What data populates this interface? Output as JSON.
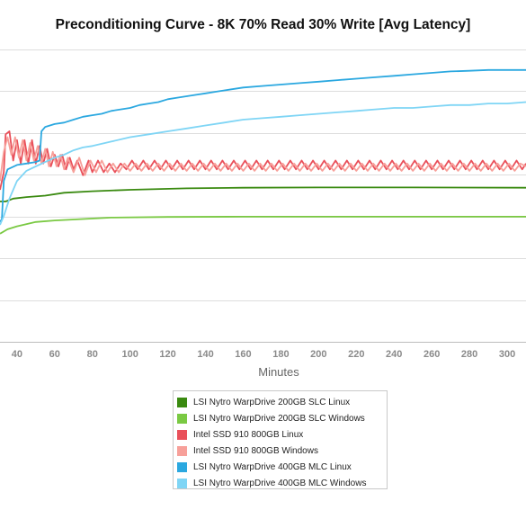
{
  "chart_data": {
    "type": "line",
    "title": "Preconditioning Curve - 8K 70% Read 30% Write [Avg Latency]",
    "xlabel": "Minutes",
    "ylabel": "",
    "xlim": [
      31,
      310
    ],
    "ylim": [
      0,
      1
    ],
    "x_ticks": [
      40,
      60,
      80,
      100,
      120,
      140,
      160,
      180,
      200,
      220,
      240,
      260,
      280,
      300
    ],
    "y_ticks": [
      0.1429,
      0.2857,
      0.4286,
      0.5714,
      0.7143,
      0.8571,
      1.0
    ],
    "grid": true,
    "legend_position": "bottom",
    "y_units_note": "",
    "series": [
      {
        "name": "LSI Nytro WarpDrive 200GB SLC Linux",
        "color": "#3a8a10",
        "points": [
          [
            31,
            0.48
          ],
          [
            34,
            0.48
          ],
          [
            38,
            0.49
          ],
          [
            45,
            0.495
          ],
          [
            55,
            0.5
          ],
          [
            65,
            0.51
          ],
          [
            80,
            0.515
          ],
          [
            100,
            0.52
          ],
          [
            130,
            0.525
          ],
          [
            160,
            0.527
          ],
          [
            200,
            0.528
          ],
          [
            250,
            0.528
          ],
          [
            310,
            0.527
          ]
        ]
      },
      {
        "name": "LSI Nytro WarpDrive 200GB SLC Windows",
        "color": "#7ac943",
        "points": [
          [
            31,
            0.37
          ],
          [
            35,
            0.385
          ],
          [
            40,
            0.395
          ],
          [
            50,
            0.41
          ],
          [
            60,
            0.415
          ],
          [
            75,
            0.42
          ],
          [
            90,
            0.425
          ],
          [
            120,
            0.427
          ],
          [
            160,
            0.428
          ],
          [
            220,
            0.428
          ],
          [
            310,
            0.428
          ]
        ]
      },
      {
        "name": "Intel SSD 910 800GB Linux",
        "color": "#e9505a",
        "points": [
          [
            31,
            0.52
          ],
          [
            33,
            0.58
          ],
          [
            34,
            0.71
          ],
          [
            36,
            0.72
          ],
          [
            38,
            0.62
          ],
          [
            40,
            0.69
          ],
          [
            42,
            0.61
          ],
          [
            44,
            0.69
          ],
          [
            46,
            0.61
          ],
          [
            48,
            0.69
          ],
          [
            50,
            0.61
          ],
          [
            52,
            0.67
          ],
          [
            54,
            0.61
          ],
          [
            56,
            0.66
          ],
          [
            58,
            0.6
          ],
          [
            60,
            0.64
          ],
          [
            62,
            0.6
          ],
          [
            64,
            0.64
          ],
          [
            66,
            0.59
          ],
          [
            68,
            0.63
          ],
          [
            70,
            0.59
          ],
          [
            72,
            0.62
          ],
          [
            75,
            0.57
          ],
          [
            78,
            0.62
          ],
          [
            80,
            0.58
          ],
          [
            83,
            0.62
          ],
          [
            86,
            0.58
          ],
          [
            89,
            0.61
          ],
          [
            92,
            0.58
          ],
          [
            95,
            0.61
          ],
          [
            98,
            0.59
          ],
          [
            101,
            0.62
          ],
          [
            104,
            0.59
          ],
          [
            107,
            0.62
          ],
          [
            110,
            0.59
          ],
          [
            113,
            0.62
          ],
          [
            116,
            0.59
          ],
          [
            119,
            0.62
          ],
          [
            122,
            0.59
          ],
          [
            125,
            0.62
          ],
          [
            128,
            0.59
          ],
          [
            131,
            0.62
          ],
          [
            134,
            0.59
          ],
          [
            137,
            0.62
          ],
          [
            140,
            0.59
          ],
          [
            143,
            0.62
          ],
          [
            146,
            0.59
          ],
          [
            149,
            0.62
          ],
          [
            152,
            0.59
          ],
          [
            155,
            0.62
          ],
          [
            158,
            0.59
          ],
          [
            161,
            0.62
          ],
          [
            164,
            0.59
          ],
          [
            167,
            0.62
          ],
          [
            170,
            0.59
          ],
          [
            173,
            0.62
          ],
          [
            176,
            0.59
          ],
          [
            179,
            0.62
          ],
          [
            182,
            0.59
          ],
          [
            185,
            0.62
          ],
          [
            188,
            0.59
          ],
          [
            191,
            0.62
          ],
          [
            194,
            0.59
          ],
          [
            197,
            0.62
          ],
          [
            200,
            0.59
          ],
          [
            203,
            0.62
          ],
          [
            206,
            0.59
          ],
          [
            209,
            0.62
          ],
          [
            212,
            0.59
          ],
          [
            215,
            0.62
          ],
          [
            218,
            0.59
          ],
          [
            221,
            0.62
          ],
          [
            224,
            0.59
          ],
          [
            227,
            0.62
          ],
          [
            230,
            0.59
          ],
          [
            233,
            0.62
          ],
          [
            236,
            0.59
          ],
          [
            239,
            0.62
          ],
          [
            242,
            0.59
          ],
          [
            245,
            0.62
          ],
          [
            248,
            0.59
          ],
          [
            251,
            0.62
          ],
          [
            254,
            0.59
          ],
          [
            257,
            0.62
          ],
          [
            260,
            0.59
          ],
          [
            263,
            0.62
          ],
          [
            266,
            0.59
          ],
          [
            269,
            0.62
          ],
          [
            272,
            0.59
          ],
          [
            275,
            0.62
          ],
          [
            278,
            0.59
          ],
          [
            281,
            0.62
          ],
          [
            284,
            0.59
          ],
          [
            287,
            0.62
          ],
          [
            290,
            0.59
          ],
          [
            293,
            0.62
          ],
          [
            296,
            0.59
          ],
          [
            299,
            0.62
          ],
          [
            302,
            0.59
          ],
          [
            305,
            0.62
          ],
          [
            308,
            0.59
          ],
          [
            310,
            0.61
          ]
        ]
      },
      {
        "name": "Intel SSD 910 800GB Windows",
        "color": "#f7a09a",
        "points": [
          [
            31,
            0.55
          ],
          [
            33,
            0.65
          ],
          [
            35,
            0.7
          ],
          [
            37,
            0.64
          ],
          [
            39,
            0.7
          ],
          [
            41,
            0.63
          ],
          [
            43,
            0.69
          ],
          [
            45,
            0.62
          ],
          [
            47,
            0.68
          ],
          [
            49,
            0.62
          ],
          [
            51,
            0.67
          ],
          [
            53,
            0.61
          ],
          [
            55,
            0.66
          ],
          [
            57,
            0.6
          ],
          [
            59,
            0.65
          ],
          [
            61,
            0.6
          ],
          [
            63,
            0.64
          ],
          [
            65,
            0.59
          ],
          [
            67,
            0.63
          ],
          [
            70,
            0.58
          ],
          [
            73,
            0.63
          ],
          [
            76,
            0.57
          ],
          [
            79,
            0.62
          ],
          [
            82,
            0.58
          ],
          [
            85,
            0.62
          ],
          [
            88,
            0.58
          ],
          [
            91,
            0.61
          ],
          [
            94,
            0.58
          ],
          [
            97,
            0.61
          ],
          [
            100,
            0.585
          ],
          [
            103,
            0.61
          ],
          [
            106,
            0.585
          ],
          [
            109,
            0.61
          ],
          [
            112,
            0.585
          ],
          [
            115,
            0.61
          ],
          [
            118,
            0.585
          ],
          [
            121,
            0.61
          ],
          [
            124,
            0.585
          ],
          [
            127,
            0.61
          ],
          [
            130,
            0.585
          ],
          [
            133,
            0.61
          ],
          [
            136,
            0.585
          ],
          [
            139,
            0.61
          ],
          [
            142,
            0.585
          ],
          [
            145,
            0.61
          ],
          [
            148,
            0.585
          ],
          [
            151,
            0.61
          ],
          [
            154,
            0.585
          ],
          [
            157,
            0.61
          ],
          [
            160,
            0.585
          ],
          [
            163,
            0.61
          ],
          [
            166,
            0.585
          ],
          [
            169,
            0.61
          ],
          [
            172,
            0.585
          ],
          [
            175,
            0.61
          ],
          [
            178,
            0.585
          ],
          [
            181,
            0.61
          ],
          [
            184,
            0.585
          ],
          [
            187,
            0.61
          ],
          [
            190,
            0.585
          ],
          [
            193,
            0.61
          ],
          [
            196,
            0.585
          ],
          [
            199,
            0.61
          ],
          [
            202,
            0.585
          ],
          [
            205,
            0.61
          ],
          [
            208,
            0.585
          ],
          [
            211,
            0.61
          ],
          [
            214,
            0.585
          ],
          [
            217,
            0.61
          ],
          [
            220,
            0.585
          ],
          [
            223,
            0.61
          ],
          [
            226,
            0.585
          ],
          [
            229,
            0.61
          ],
          [
            232,
            0.585
          ],
          [
            235,
            0.61
          ],
          [
            238,
            0.585
          ],
          [
            241,
            0.61
          ],
          [
            244,
            0.585
          ],
          [
            247,
            0.61
          ],
          [
            250,
            0.585
          ],
          [
            253,
            0.61
          ],
          [
            256,
            0.585
          ],
          [
            259,
            0.61
          ],
          [
            262,
            0.585
          ],
          [
            265,
            0.61
          ],
          [
            268,
            0.585
          ],
          [
            271,
            0.61
          ],
          [
            274,
            0.585
          ],
          [
            277,
            0.61
          ],
          [
            280,
            0.585
          ],
          [
            283,
            0.61
          ],
          [
            286,
            0.585
          ],
          [
            289,
            0.61
          ],
          [
            292,
            0.585
          ],
          [
            295,
            0.61
          ],
          [
            298,
            0.585
          ],
          [
            301,
            0.61
          ],
          [
            304,
            0.585
          ],
          [
            307,
            0.61
          ],
          [
            310,
            0.6
          ]
        ]
      },
      {
        "name": "LSI Nytro WarpDrive 400GB MLC Linux",
        "color": "#2ba8e0",
        "points": [
          [
            31,
            0.41
          ],
          [
            32,
            0.42
          ],
          [
            33,
            0.55
          ],
          [
            35,
            0.59
          ],
          [
            40,
            0.605
          ],
          [
            45,
            0.61
          ],
          [
            50,
            0.615
          ],
          [
            52,
            0.62
          ],
          [
            53,
            0.72
          ],
          [
            55,
            0.735
          ],
          [
            60,
            0.745
          ],
          [
            65,
            0.75
          ],
          [
            70,
            0.76
          ],
          [
            75,
            0.77
          ],
          [
            80,
            0.775
          ],
          [
            85,
            0.78
          ],
          [
            90,
            0.79
          ],
          [
            95,
            0.795
          ],
          [
            100,
            0.8
          ],
          [
            105,
            0.81
          ],
          [
            110,
            0.815
          ],
          [
            115,
            0.82
          ],
          [
            120,
            0.83
          ],
          [
            125,
            0.835
          ],
          [
            130,
            0.84
          ],
          [
            135,
            0.845
          ],
          [
            140,
            0.85
          ],
          [
            145,
            0.855
          ],
          [
            150,
            0.86
          ],
          [
            160,
            0.87
          ],
          [
            170,
            0.875
          ],
          [
            180,
            0.88
          ],
          [
            190,
            0.885
          ],
          [
            200,
            0.89
          ],
          [
            210,
            0.895
          ],
          [
            220,
            0.9
          ],
          [
            230,
            0.905
          ],
          [
            240,
            0.91
          ],
          [
            250,
            0.915
          ],
          [
            260,
            0.92
          ],
          [
            270,
            0.925
          ],
          [
            280,
            0.927
          ],
          [
            290,
            0.93
          ],
          [
            300,
            0.93
          ],
          [
            310,
            0.93
          ]
        ]
      },
      {
        "name": "LSI Nytro WarpDrive 400GB MLC Windows",
        "color": "#7fd5f5",
        "points": [
          [
            31,
            0.4
          ],
          [
            33,
            0.43
          ],
          [
            36,
            0.49
          ],
          [
            40,
            0.55
          ],
          [
            45,
            0.585
          ],
          [
            50,
            0.6
          ],
          [
            55,
            0.615
          ],
          [
            60,
            0.63
          ],
          [
            65,
            0.64
          ],
          [
            70,
            0.655
          ],
          [
            75,
            0.665
          ],
          [
            80,
            0.67
          ],
          [
            90,
            0.685
          ],
          [
            100,
            0.7
          ],
          [
            110,
            0.71
          ],
          [
            120,
            0.72
          ],
          [
            130,
            0.73
          ],
          [
            140,
            0.74
          ],
          [
            150,
            0.75
          ],
          [
            160,
            0.76
          ],
          [
            170,
            0.765
          ],
          [
            180,
            0.77
          ],
          [
            190,
            0.775
          ],
          [
            200,
            0.78
          ],
          [
            210,
            0.785
          ],
          [
            220,
            0.79
          ],
          [
            230,
            0.795
          ],
          [
            240,
            0.8
          ],
          [
            250,
            0.8
          ],
          [
            260,
            0.805
          ],
          [
            270,
            0.81
          ],
          [
            280,
            0.81
          ],
          [
            290,
            0.815
          ],
          [
            300,
            0.815
          ],
          [
            310,
            0.82
          ]
        ]
      }
    ]
  }
}
